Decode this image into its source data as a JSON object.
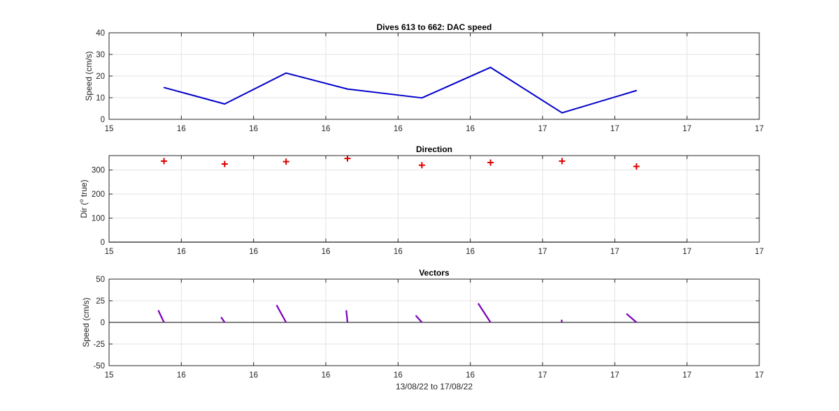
{
  "figure_background": "#ffffff",
  "chart_data": [
    {
      "type": "line",
      "title": "Dives 613 to 662: DAC speed",
      "ylabel": "Speed (cm/s)",
      "xlabel": "",
      "xlim": [
        0,
        9
      ],
      "ylim": [
        0,
        40
      ],
      "xtick_labels": [
        "15",
        "16",
        "16",
        "16",
        "16",
        "16",
        "17",
        "17",
        "17",
        "17"
      ],
      "ytick_labels": [
        "0",
        "10",
        "20",
        "30",
        "40"
      ],
      "grid": true,
      "series": [
        {
          "color": "#0000cc",
          "x": [
            0.76,
            1.6,
            2.45,
            3.3,
            4.33,
            5.28,
            6.27,
            7.3
          ],
          "y": [
            14.7,
            7.1,
            21.4,
            14,
            9.9,
            24,
            3,
            13.3
          ]
        }
      ]
    },
    {
      "type": "scatter",
      "title": "Direction",
      "ylabel": "Dir (o true)",
      "ylabel_parts": [
        "Dir (",
        "o",
        " true)"
      ],
      "xlabel": "",
      "xlim": [
        0,
        9
      ],
      "ylim": [
        0,
        360
      ],
      "xtick_labels": [
        "15",
        "16",
        "16",
        "16",
        "16",
        "16",
        "17",
        "17",
        "17",
        "17"
      ],
      "ytick_labels": [
        "0",
        "100",
        "200",
        "300"
      ],
      "grid": true,
      "baseline_end": 8,
      "series": [
        {
          "color": "#dd0000",
          "marker": "+",
          "x": [
            0.76,
            1.6,
            2.45,
            3.3,
            4.33,
            5.28,
            6.27,
            7.3
          ],
          "y": [
            337,
            325,
            335,
            348,
            320,
            331,
            337,
            315
          ]
        }
      ]
    },
    {
      "type": "vector",
      "title": "Vectors",
      "ylabel": "Speed (cm/s)",
      "xlabel": "13/08/22 to 17/08/22",
      "xlim": [
        0,
        9
      ],
      "ylim": [
        -50,
        50
      ],
      "xtick_labels": [
        "15",
        "16",
        "16",
        "16",
        "16",
        "16",
        "17",
        "17",
        "17",
        "17"
      ],
      "ytick_labels": [
        "-50",
        "-25",
        "0",
        "25",
        "50"
      ],
      "grid": true,
      "zero_line_color": "#000000",
      "series": [
        {
          "color": "#7a00b8",
          "x": [
            0.76,
            1.6,
            2.45,
            3.3,
            4.33,
            5.28,
            6.27,
            7.3
          ],
          "u": [
            -1.2,
            -0.75,
            -2.0,
            -0.25,
            -1.3,
            -2.6,
            -0.12,
            -2.1
          ],
          "v": [
            14,
            6,
            20,
            14,
            8,
            22,
            3,
            10
          ]
        }
      ]
    }
  ]
}
